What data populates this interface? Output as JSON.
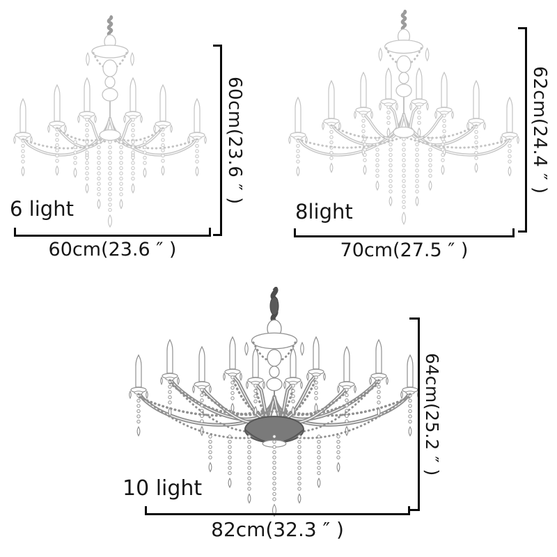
{
  "chart_title": "",
  "products": [
    {
      "id": "6-light",
      "label": "6 light",
      "height_label": "60cm(23.6 ″ )",
      "width_label": "60cm(23.6 ″ )"
    },
    {
      "id": "8-light",
      "label": "8light",
      "height_label": "62cm(24.4 ″ )",
      "width_label": "70cm(27.5 ″ )"
    },
    {
      "id": "10-light",
      "label": "10 light",
      "height_label": "64cm(25.2 ″ )",
      "width_label": "82cm(32.3 ″ )"
    }
  ],
  "colors": {
    "background": "#ffffff",
    "dimension_line": "#0a0a0a",
    "text": "#161616",
    "sketch_light": "#c3c3c3",
    "sketch_dark": "#8f8f8f"
  }
}
